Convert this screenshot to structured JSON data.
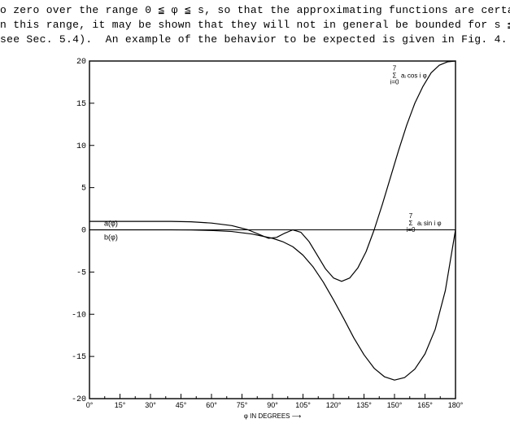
{
  "text": {
    "line1": "o zero over the range 0 ≦ φ ≦ s, so that the approximating functions are certainl",
    "line2": "n this range, it may be shown that they will not in general be bounded for s ≦ φ",
    "line3": "see Sec. 5.4).  An example of the behavior to be expected is given in Fig. 4."
  },
  "chart": {
    "type": "line",
    "background_color": "#ffffff",
    "axis_color": "#000000",
    "line_color": "#000000",
    "line_width": 1.2,
    "frame_width": 1.4,
    "font_family": "Arial, Helvetica, sans-serif",
    "tick_fontsize": 9,
    "label_fontsize": 9,
    "xlim": [
      0,
      180
    ],
    "ylim": [
      -20,
      20
    ],
    "xtick_step": 15,
    "ytick_step": 5,
    "xticks": [
      0,
      15,
      30,
      45,
      60,
      75,
      90,
      105,
      120,
      135,
      150,
      165,
      180
    ],
    "xtick_labels": [
      "0°",
      "15°",
      "30°",
      "45°",
      "60°",
      "75°",
      "90°",
      "105°",
      "120°",
      "135°",
      "150°",
      "165°",
      "180°"
    ],
    "yticks": [
      -20,
      -15,
      -10,
      -5,
      0,
      5,
      10,
      15,
      20
    ],
    "x_axis_title": "φ IN DEGREES ⟶",
    "labels": {
      "a_phi": "a(φ)",
      "b_phi": "b(φ)",
      "cos_series": "Σ aᵢ cos i φ (i=0..7)",
      "sin_series": "Σ aᵢ sin i φ (i=0..7)"
    },
    "series": [
      {
        "name": "cos_series",
        "points": [
          [
            0,
            1.0
          ],
          [
            10,
            1.0
          ],
          [
            20,
            1.0
          ],
          [
            30,
            1.0
          ],
          [
            40,
            1.0
          ],
          [
            50,
            0.95
          ],
          [
            60,
            0.8
          ],
          [
            70,
            0.5
          ],
          [
            78,
            0.0
          ],
          [
            84,
            -0.6
          ],
          [
            88,
            -1.0
          ],
          [
            92,
            -0.9
          ],
          [
            96,
            -0.4
          ],
          [
            100,
            0.0
          ],
          [
            104,
            -0.3
          ],
          [
            108,
            -1.4
          ],
          [
            112,
            -3.0
          ],
          [
            116,
            -4.6
          ],
          [
            120,
            -5.7
          ],
          [
            124,
            -6.1
          ],
          [
            128,
            -5.7
          ],
          [
            132,
            -4.5
          ],
          [
            136,
            -2.6
          ],
          [
            140,
            0.0
          ],
          [
            144,
            3.0
          ],
          [
            148,
            6.2
          ],
          [
            152,
            9.4
          ],
          [
            156,
            12.4
          ],
          [
            160,
            15.0
          ],
          [
            164,
            17.0
          ],
          [
            168,
            18.6
          ],
          [
            172,
            19.5
          ],
          [
            176,
            19.9
          ],
          [
            180,
            20.0
          ]
        ]
      },
      {
        "name": "sin_series",
        "points": [
          [
            0,
            0.0
          ],
          [
            10,
            0.0
          ],
          [
            20,
            0.0
          ],
          [
            30,
            0.0
          ],
          [
            40,
            0.0
          ],
          [
            50,
            -0.02
          ],
          [
            60,
            -0.08
          ],
          [
            70,
            -0.2
          ],
          [
            80,
            -0.5
          ],
          [
            90,
            -1.0
          ],
          [
            95,
            -1.4
          ],
          [
            100,
            -2.0
          ],
          [
            105,
            -3.0
          ],
          [
            110,
            -4.4
          ],
          [
            115,
            -6.2
          ],
          [
            120,
            -8.3
          ],
          [
            125,
            -10.5
          ],
          [
            130,
            -12.8
          ],
          [
            135,
            -14.8
          ],
          [
            140,
            -16.4
          ],
          [
            145,
            -17.4
          ],
          [
            150,
            -17.8
          ],
          [
            155,
            -17.5
          ],
          [
            160,
            -16.5
          ],
          [
            165,
            -14.7
          ],
          [
            170,
            -11.8
          ],
          [
            175,
            -7.2
          ],
          [
            180,
            0.0
          ]
        ]
      }
    ]
  }
}
